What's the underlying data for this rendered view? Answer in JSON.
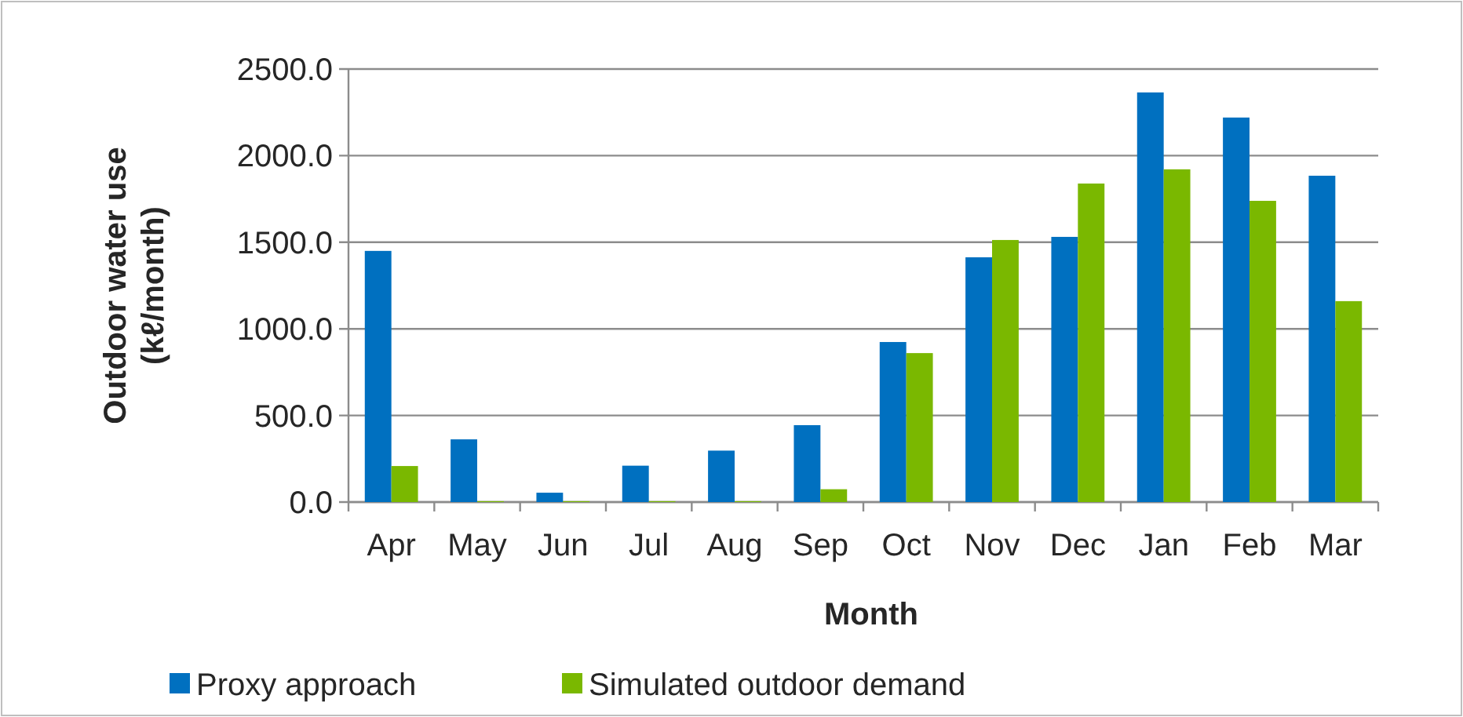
{
  "chart_data": {
    "type": "bar",
    "xlabel": "Month",
    "ylabel": "Outdoor water use (kℓ/month)",
    "categories": [
      "Apr",
      "May",
      "Jun",
      "Jul",
      "Aug",
      "Sep",
      "Oct",
      "Nov",
      "Dec",
      "Jan",
      "Feb",
      "Mar"
    ],
    "series": [
      {
        "name": "Proxy approach",
        "color": "#0070c0",
        "values": [
          1450,
          362,
          54,
          210,
          297,
          444,
          924,
          1413,
          1531,
          2365,
          2220,
          1884
        ]
      },
      {
        "name": "Simulated outdoor demand",
        "color": "#7ab800",
        "values": [
          208,
          5,
          5,
          5,
          5,
          74,
          860,
          1513,
          1839,
          1921,
          1739,
          1160
        ]
      }
    ],
    "ylim": [
      0,
      2500
    ],
    "yticks": [
      {
        "value": 0,
        "label": "0.0"
      },
      {
        "value": 500,
        "label": "500.0"
      },
      {
        "value": 1000,
        "label": "1000.0"
      },
      {
        "value": 1500,
        "label": "1500.0"
      },
      {
        "value": 2000,
        "label": "2000.0"
      },
      {
        "value": 2500,
        "label": "2500.0"
      }
    ],
    "grid": "y",
    "legend": "bottom"
  }
}
